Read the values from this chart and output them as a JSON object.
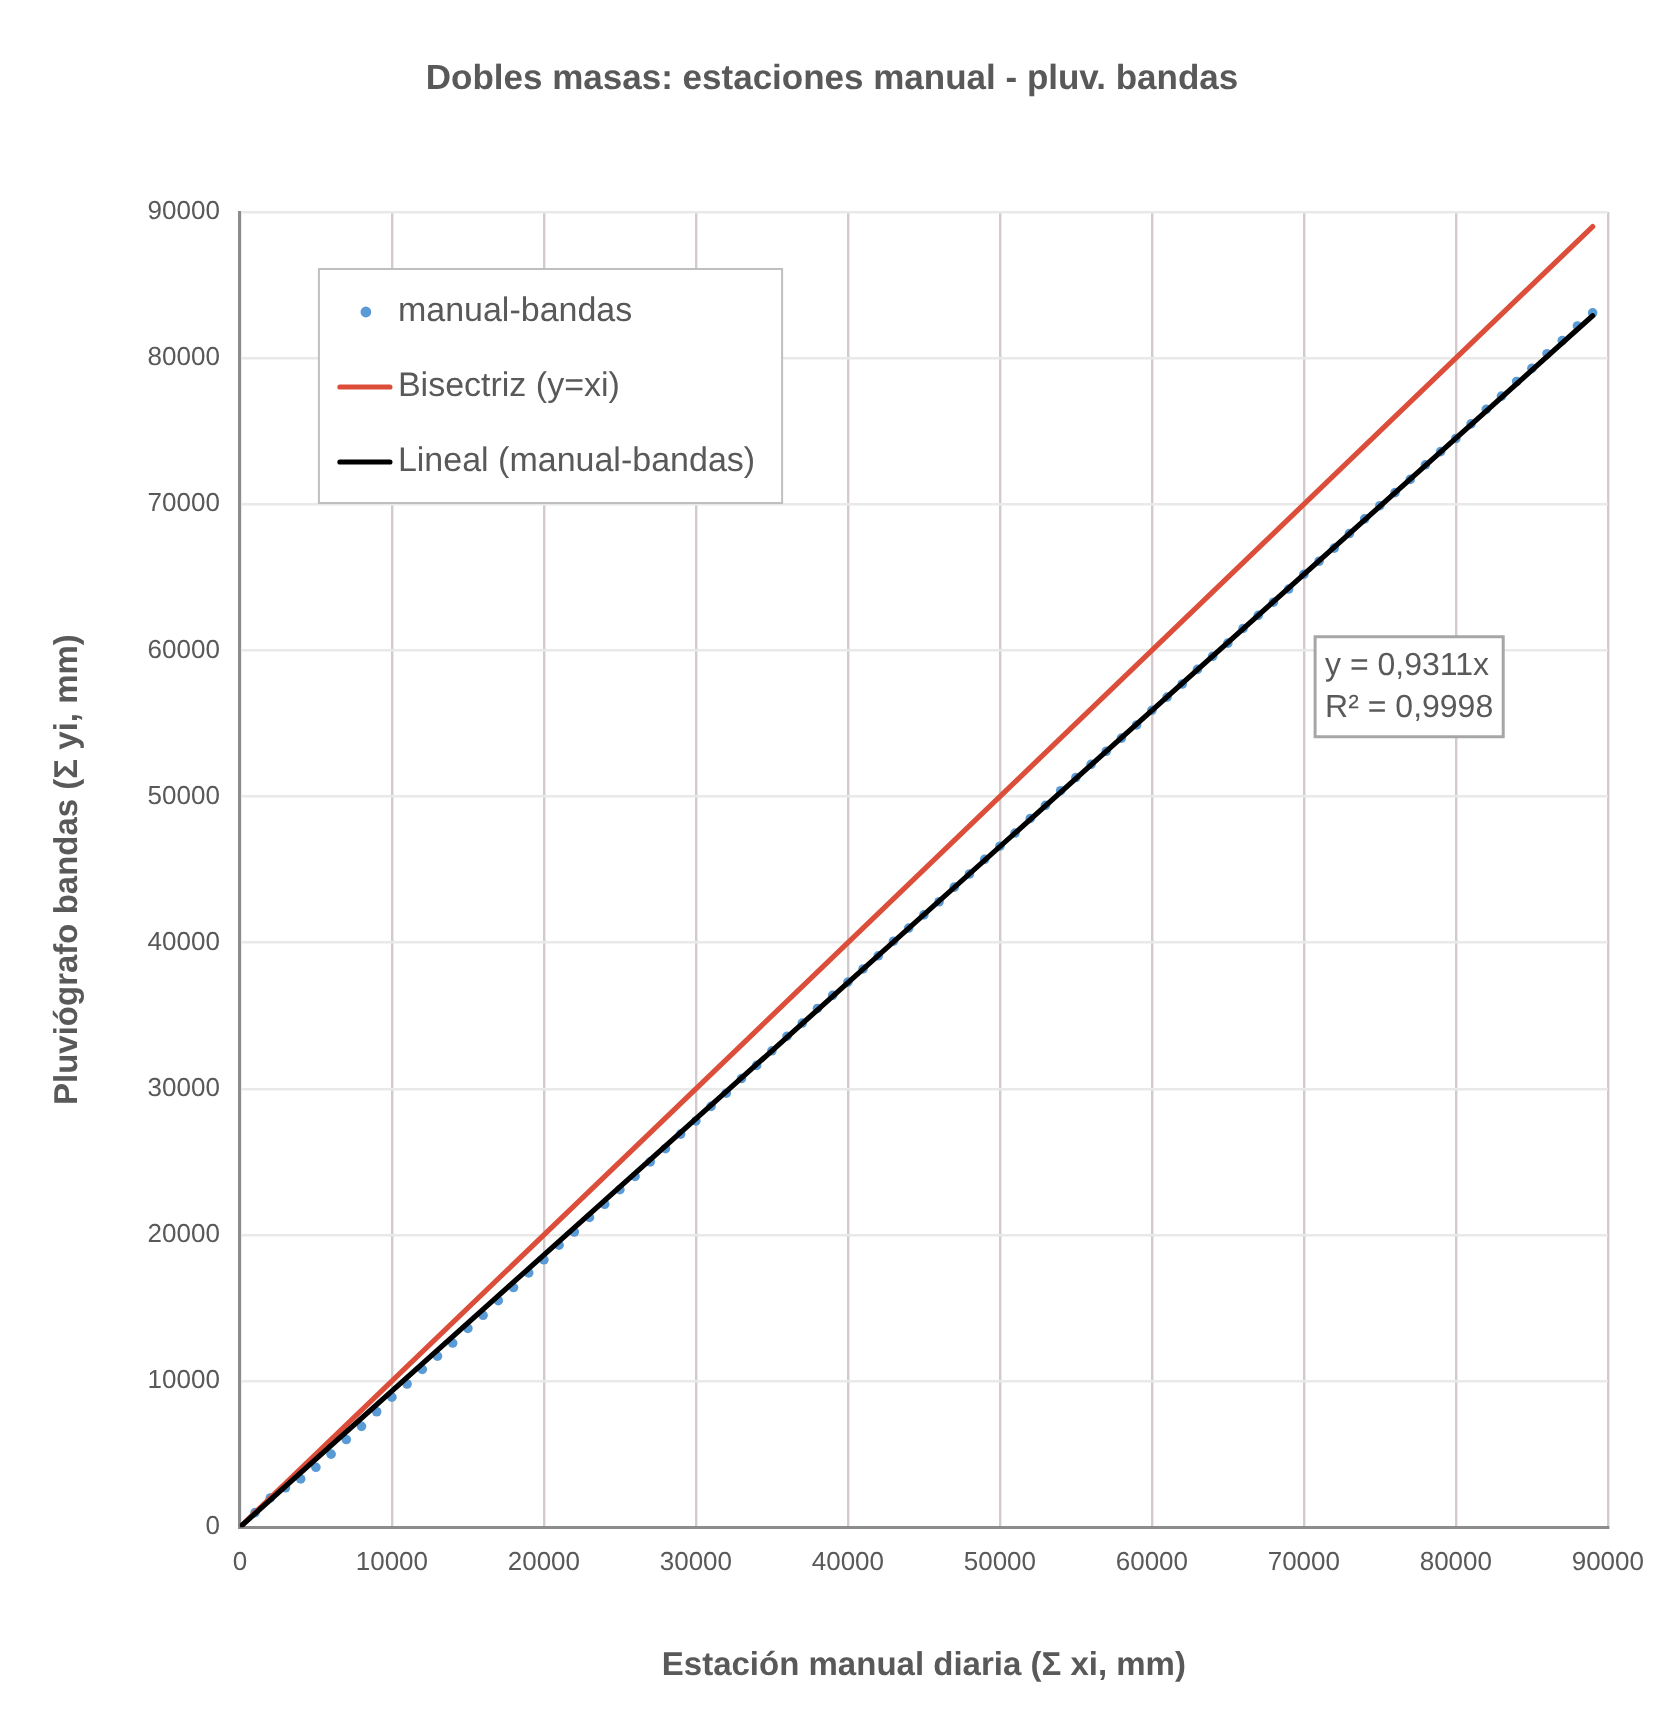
{
  "chart_data": {
    "type": "scatter",
    "title": "Dobles masas: estaciones manual - pluv. bandas",
    "xlabel": "Estación manual diaria (Σ xi, mm)",
    "ylabel": "Pluviógrafo bandas (Σ yi, mm)",
    "xlim": [
      0,
      90000
    ],
    "xticks": [
      0,
      10000,
      20000,
      30000,
      40000,
      50000,
      60000,
      70000,
      80000,
      90000
    ],
    "ylim": [
      0,
      90000
    ],
    "yticks": [
      0,
      10000,
      20000,
      30000,
      40000,
      50000,
      60000,
      70000,
      80000,
      90000
    ],
    "grid": true,
    "legend": "top left",
    "annotations": [
      "y = 0,9311x\nR² = 0,9998"
    ],
    "series": [
      {
        "name": "manual-bandas",
        "marker": "circle",
        "color": "#5b9bd5",
        "x": [
          0,
          1000,
          2000,
          3000,
          4000,
          5000,
          6000,
          7000,
          8000,
          9000,
          10000,
          11000,
          12000,
          13000,
          14000,
          15000,
          16000,
          17000,
          18000,
          19000,
          20000,
          21000,
          22000,
          23000,
          24000,
          25000,
          26000,
          27000,
          28000,
          29000,
          30000,
          31000,
          32000,
          33000,
          34000,
          35000,
          36000,
          37000,
          38000,
          39000,
          40000,
          41000,
          42000,
          43000,
          44000,
          45000,
          46000,
          47000,
          48000,
          49000,
          50000,
          51000,
          52000,
          53000,
          54000,
          55000,
          56000,
          57000,
          58000,
          59000,
          60000,
          61000,
          62000,
          63000,
          64000,
          65000,
          66000,
          67000,
          68000,
          69000,
          70000,
          71000,
          72000,
          73000,
          74000,
          75000,
          76000,
          77000,
          78000,
          79000,
          80000,
          81000,
          82000,
          83000,
          84000,
          85000,
          86000,
          87000,
          88000,
          89000
        ],
        "values": [
          0,
          1000,
          2000,
          2700,
          3300,
          4100,
          5000,
          6000,
          6900,
          7900,
          8900,
          9800,
          10800,
          11700,
          12600,
          13600,
          14500,
          15500,
          16400,
          17400,
          18300,
          19300,
          20200,
          21200,
          22100,
          23100,
          24000,
          25000,
          25900,
          26900,
          27800,
          28800,
          29700,
          30700,
          31600,
          32600,
          33600,
          34500,
          35500,
          36400,
          37300,
          38200,
          39100,
          40100,
          41000,
          41900,
          42800,
          43800,
          44700,
          45700,
          46600,
          47500,
          48500,
          49400,
          50400,
          51300,
          52200,
          53100,
          54000,
          54900,
          55900,
          56800,
          57700,
          58700,
          59600,
          60500,
          61500,
          62400,
          63300,
          64200,
          65200,
          66100,
          67000,
          68000,
          69000,
          69900,
          70800,
          71700,
          72700,
          73600,
          74500,
          75500,
          76500,
          77400,
          78400,
          79300,
          80300,
          81200,
          82200,
          83100
        ]
      },
      {
        "name": "Bisectriz (y=xi)",
        "type": "line",
        "color": "#dc4e3a",
        "x": [
          0,
          89000
        ],
        "values": [
          0,
          89000
        ]
      },
      {
        "name": "Lineal (manual-bandas)",
        "type": "line",
        "color": "#000000",
        "x": [
          0,
          89000
        ],
        "values": [
          0,
          82900
        ]
      }
    ]
  }
}
